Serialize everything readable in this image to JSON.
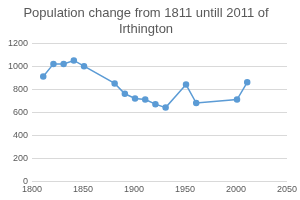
{
  "chart_data": {
    "type": "line",
    "title": "Population change from 1811 untill 2011 of Irthington",
    "x": [
      1811,
      1821,
      1831,
      1841,
      1851,
      1881,
      1891,
      1901,
      1911,
      1921,
      1931,
      1951,
      1961,
      2001,
      2011
    ],
    "values": [
      910,
      1020,
      1020,
      1050,
      1000,
      850,
      760,
      720,
      710,
      670,
      640,
      840,
      680,
      710,
      860
    ],
    "color": "#5b9bd5",
    "marker": "circle",
    "line_style": "solid",
    "xlim": [
      1800,
      2050
    ],
    "xticks": [
      1800,
      1850,
      1900,
      1950,
      2000,
      2050
    ],
    "ylim": [
      0,
      1200
    ],
    "yticks": [
      0,
      200,
      400,
      600,
      800,
      1000,
      1200
    ],
    "grid": true
  }
}
